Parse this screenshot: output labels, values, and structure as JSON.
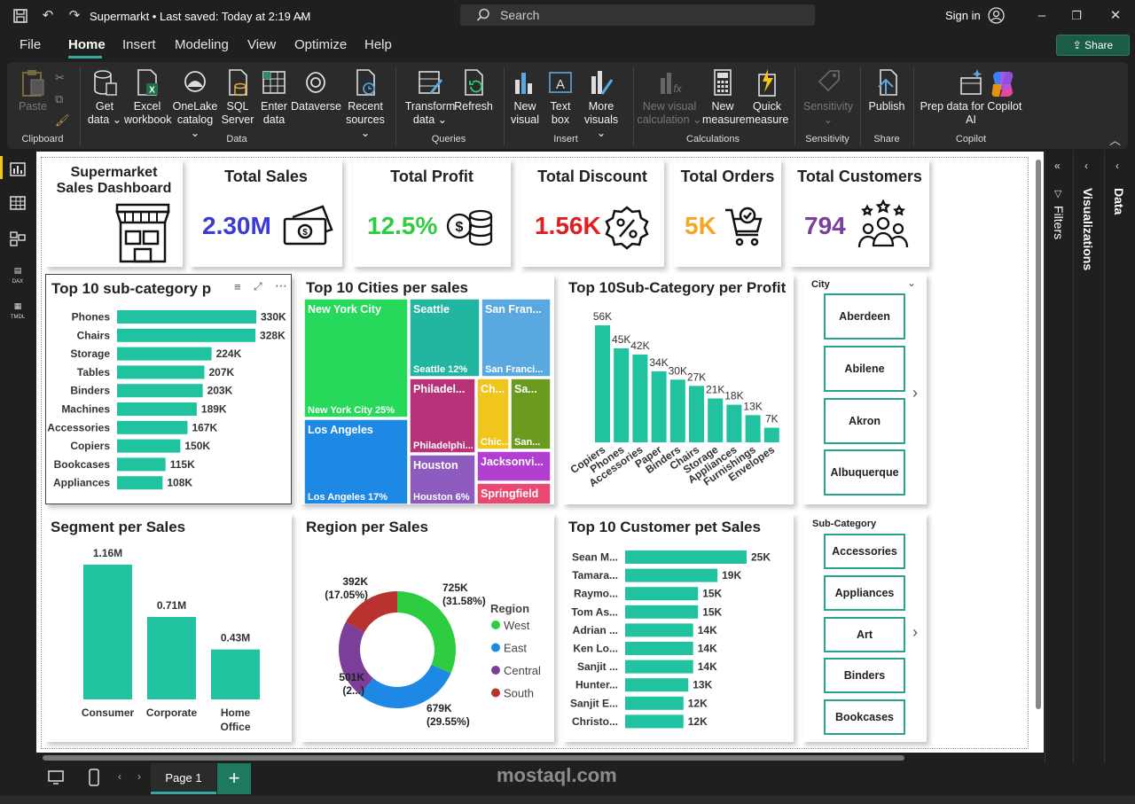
{
  "titlebar": {
    "title": "Supermarkt • Last saved: Today at 2:19 AM",
    "search": "Search",
    "signin": "Sign in"
  },
  "menu": [
    "File",
    "Home",
    "Insert",
    "Modeling",
    "View",
    "Optimize",
    "Help"
  ],
  "share": "Share",
  "ribbon": {
    "paste": "Paste",
    "clipboard": "Clipboard",
    "get_data": [
      "Get",
      "data ⌄"
    ],
    "excel": [
      "Excel",
      "workbook"
    ],
    "onelake": [
      "OneLake",
      "catalog ⌄"
    ],
    "sql": [
      "SQL",
      "Server"
    ],
    "enter": [
      "Enter",
      "data"
    ],
    "dataverse": "Dataverse",
    "recent": [
      "Recent",
      "sources ⌄"
    ],
    "data_group": "Data",
    "transform": [
      "Transform",
      "data ⌄"
    ],
    "refresh": "Refresh",
    "queries_group": "Queries",
    "new_visual": [
      "New",
      "visual"
    ],
    "text_box": [
      "Text",
      "box"
    ],
    "more_visuals": [
      "More",
      "visuals ⌄"
    ],
    "insert_group": "Insert",
    "new_visual_calc": [
      "New visual",
      "calculation ⌄"
    ],
    "new_measure": [
      "New",
      "measure"
    ],
    "quick_measure": [
      "Quick",
      "measure"
    ],
    "calc_group": "Calculations",
    "sensitivity": [
      "Sensitivity",
      "⌄"
    ],
    "sensitivity_group": "Sensitivity",
    "publish": "Publish",
    "share_group": "Share",
    "prep": [
      "Prep data for Copilot",
      "AI"
    ],
    "copilot_group": "Copilot"
  },
  "panes": {
    "filters": "Filters",
    "visualizations": "Visualizations",
    "data": "Data"
  },
  "page_tab": "Page 1",
  "watermark": "mostaql.com",
  "dashboard": {
    "title": [
      "Supermarket",
      "Sales Dashboard"
    ],
    "kpis": [
      {
        "label": "Total Sales",
        "value": "2.30M",
        "color": "#3b3bd6",
        "icon": "cash-icon"
      },
      {
        "label": "Total Profit",
        "value": "12.5%",
        "color": "#2ecc40",
        "icon": "coins-icon"
      },
      {
        "label": "Total Discount",
        "value": "1.56K",
        "color": "#e02020",
        "icon": "percent-badge-icon"
      },
      {
        "label": "Total Orders",
        "value": "5K",
        "color": "#f5a623",
        "icon": "cart-icon"
      },
      {
        "label": "Total Customers",
        "value": "794",
        "color": "#7b3f99",
        "icon": "people-icon"
      }
    ],
    "slicer_city": {
      "title": "City",
      "items": [
        "Aberdeen",
        "Abilene",
        "Akron",
        "Albuquerque"
      ]
    },
    "slicer_subcat": {
      "title": "Sub-Category",
      "items": [
        "Accessories",
        "Appliances",
        "Art",
        "Binders",
        "Bookcases"
      ]
    }
  },
  "chart_data": [
    {
      "type": "bar",
      "orientation": "horizontal",
      "title": "Top 10 sub-category p",
      "categories": [
        "Phones",
        "Chairs",
        "Storage",
        "Tables",
        "Binders",
        "Machines",
        "Accessories",
        "Copiers",
        "Bookcases",
        "Appliances"
      ],
      "values": [
        330,
        328,
        224,
        207,
        203,
        189,
        167,
        150,
        115,
        108
      ],
      "labels": [
        "330K",
        "328K",
        "224K",
        "207K",
        "203K",
        "189K",
        "167K",
        "150K",
        "115K",
        "108K"
      ],
      "color": "#20c2a0"
    },
    {
      "type": "treemap",
      "title": "Top 10 Cities per sales",
      "cells": [
        {
          "name": "New York City",
          "label": "New York City 25%",
          "color": "#26d95a"
        },
        {
          "name": "Seattle",
          "label": "Seattle 12%",
          "color": "#22b5a0"
        },
        {
          "name": "San Fran...",
          "label": "San Franci...",
          "color": "#5aa8e0"
        },
        {
          "name": "Los Angeles",
          "label": "Los Angeles 17%",
          "color": "#1e88e5"
        },
        {
          "name": "Philadel...",
          "label": "Philadelphi...",
          "color": "#b8327a"
        },
        {
          "name": "Ch...",
          "label": "Chic...",
          "color": "#f0c61e"
        },
        {
          "name": "Sa...",
          "label": "San...",
          "color": "#6a9a1e"
        },
        {
          "name": "Houston",
          "label": "Houston 6%",
          "color": "#8e5bbf"
        },
        {
          "name": "Jacksonvi...",
          "label": "",
          "color": "#b23fd1"
        },
        {
          "name": "Springfield",
          "label": "",
          "color": "#e84a6f"
        }
      ]
    },
    {
      "type": "bar",
      "orientation": "vertical",
      "title": "Top 10Sub-Category per Profit",
      "categories": [
        "Copiers",
        "Phones",
        "Accessories",
        "Paper",
        "Binders",
        "Chairs",
        "Storage",
        "Appliances",
        "Furnishings",
        "Envelopes"
      ],
      "values": [
        56,
        45,
        42,
        34,
        30,
        27,
        21,
        18,
        13,
        7
      ],
      "labels": [
        "56K",
        "45K",
        "42K",
        "34K",
        "30K",
        "27K",
        "21K",
        "18K",
        "13K",
        "7K"
      ],
      "color": "#20c2a0"
    },
    {
      "type": "bar",
      "orientation": "vertical",
      "title": "Segment per Sales",
      "categories": [
        "Consumer",
        "Corporate",
        "Home Office"
      ],
      "values": [
        1.16,
        0.71,
        0.43
      ],
      "labels": [
        "1.16M",
        "0.71M",
        "0.43M"
      ],
      "color": "#20c2a0"
    },
    {
      "type": "pie",
      "donut": true,
      "title": "Region per Sales",
      "legend_title": "Region",
      "slices": [
        {
          "name": "West",
          "value": 725,
          "label": "725K",
          "pct": "(31.58%)",
          "color": "#2ecc40"
        },
        {
          "name": "East",
          "value": 679,
          "label": "679K",
          "pct": "(29.55%)",
          "color": "#1e88e5"
        },
        {
          "name": "Central",
          "value": 501,
          "label": "501K",
          "pct": "(2...)",
          "color": "#7b3f99"
        },
        {
          "name": "South",
          "value": 392,
          "label": "392K",
          "pct": "(17.05%)",
          "color": "#b8322f"
        }
      ]
    },
    {
      "type": "bar",
      "orientation": "horizontal",
      "title": "Top 10 Customer pet Sales",
      "categories": [
        "Sean M...",
        "Tamara...",
        "Raymo...",
        "Tom As...",
        "Adrian ...",
        "Ken Lo...",
        "Sanjit ...",
        "Hunter...",
        "Sanjit E...",
        "Christo..."
      ],
      "values": [
        25,
        19,
        15,
        15,
        14,
        14,
        14,
        13,
        12,
        12
      ],
      "labels": [
        "25K",
        "19K",
        "15K",
        "15K",
        "14K",
        "14K",
        "14K",
        "13K",
        "12K",
        "12K"
      ],
      "color": "#20c2a0"
    }
  ]
}
